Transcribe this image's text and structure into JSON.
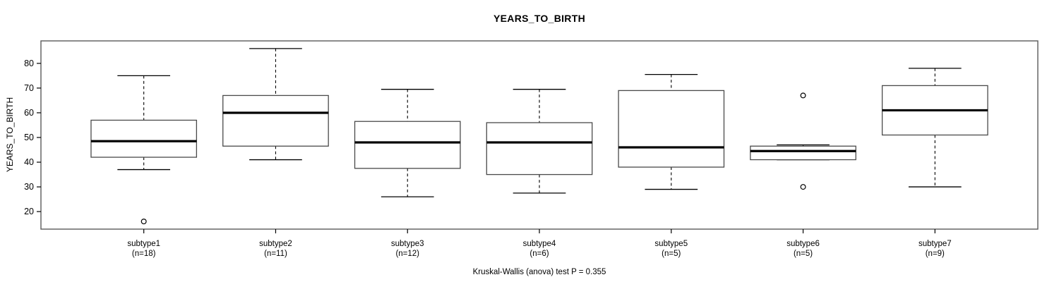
{
  "title": "YEARS_TO_BIRTH",
  "footnote": "Kruskal-Wallis (anova) test P = 0.355",
  "colors": {
    "line": "#000000",
    "frame": "#5a5a5a",
    "box_border": "#4a4a4a",
    "background": "#ffffff"
  },
  "chart_data": {
    "type": "boxplot",
    "title": "YEARS_TO_BIRTH",
    "xlabel": "",
    "ylabel": "YEARS_TO_BIRTH",
    "ylim": [
      12.9,
      89.1
    ],
    "y_ticks": [
      20,
      30,
      40,
      50,
      60,
      70,
      80
    ],
    "grid": false,
    "legend": null,
    "annotation": "Kruskal-Wallis (anova) test P = 0.355",
    "categories": [
      "subtype1",
      "subtype2",
      "subtype3",
      "subtype4",
      "subtype5",
      "subtype6",
      "subtype7"
    ],
    "groups": [
      {
        "label": "subtype1",
        "n_label": "(n=18)",
        "n": 18,
        "whisker_low": 37,
        "q1": 42,
        "median": 48.5,
        "q3": 57,
        "whisker_high": 75,
        "outliers": [
          16
        ]
      },
      {
        "label": "subtype2",
        "n_label": "(n=11)",
        "n": 11,
        "whisker_low": 41,
        "q1": 46.5,
        "median": 60,
        "q3": 67,
        "whisker_high": 86,
        "outliers": []
      },
      {
        "label": "subtype3",
        "n_label": "(n=12)",
        "n": 12,
        "whisker_low": 26,
        "q1": 37.5,
        "median": 48,
        "q3": 56.5,
        "whisker_high": 69.5,
        "outliers": []
      },
      {
        "label": "subtype4",
        "n_label": "(n=6)",
        "n": 6,
        "whisker_low": 27.5,
        "q1": 35,
        "median": 48,
        "q3": 56,
        "whisker_high": 69.5,
        "outliers": []
      },
      {
        "label": "subtype5",
        "n_label": "(n=5)",
        "n": 5,
        "whisker_low": 29,
        "q1": 38,
        "median": 46,
        "q3": 69,
        "whisker_high": 75.5,
        "outliers": []
      },
      {
        "label": "subtype6",
        "n_label": "(n=5)",
        "n": 5,
        "whisker_low": 41,
        "q1": 41,
        "median": 44.5,
        "q3": 46.5,
        "whisker_high": 47,
        "outliers": [
          67,
          30
        ]
      },
      {
        "label": "subtype7",
        "n_label": "(n=9)",
        "n": 9,
        "whisker_low": 30,
        "q1": 51,
        "median": 61,
        "q3": 71,
        "whisker_high": 78,
        "outliers": []
      }
    ]
  }
}
